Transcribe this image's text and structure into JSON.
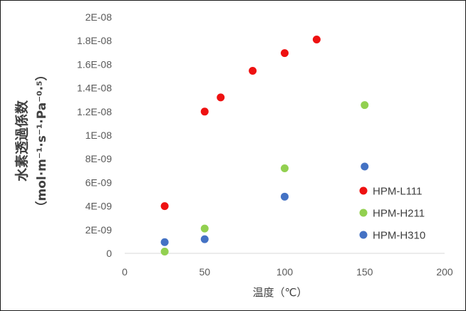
{
  "chart_data": {
    "type": "scatter",
    "title": "",
    "xlabel": "温度（℃）",
    "ylabel": "水素透過係数",
    "ylabel_unit": "（mol·m⁻¹·s⁻¹·Pa⁻⁰·⁵）",
    "xlim": [
      0,
      200
    ],
    "ylim": [
      0,
      2e-08
    ],
    "x_ticks": [
      "0",
      "50",
      "100",
      "150",
      "200"
    ],
    "y_ticks": [
      "0",
      "2E-09",
      "4E-09",
      "6E-09",
      "8E-09",
      "1E-08",
      "1.2E-08",
      "1.4E-08",
      "1.6E-08",
      "1.8E-08",
      "2E-08"
    ],
    "grid": false,
    "legend_position": "right",
    "series": [
      {
        "name": "HPM-L111",
        "color": "#ee1111",
        "points": [
          [
            25,
            4e-09
          ],
          [
            50,
            1.2e-08
          ],
          [
            60,
            1.32e-08
          ],
          [
            80,
            1.545e-08
          ],
          [
            100,
            1.695e-08
          ],
          [
            120,
            1.81e-08
          ]
        ]
      },
      {
        "name": "HPM-H211",
        "color": "#92d050",
        "points": [
          [
            25,
            1.5e-10
          ],
          [
            50,
            2.1e-09
          ],
          [
            100,
            7.2e-09
          ],
          [
            150,
            1.255e-08
          ]
        ]
      },
      {
        "name": "HPM-H310",
        "color": "#4472c4",
        "points": [
          [
            25,
            9.5e-10
          ],
          [
            50,
            1.2e-09
          ],
          [
            100,
            4.8e-09
          ],
          [
            150,
            7.35e-09
          ]
        ]
      }
    ]
  }
}
